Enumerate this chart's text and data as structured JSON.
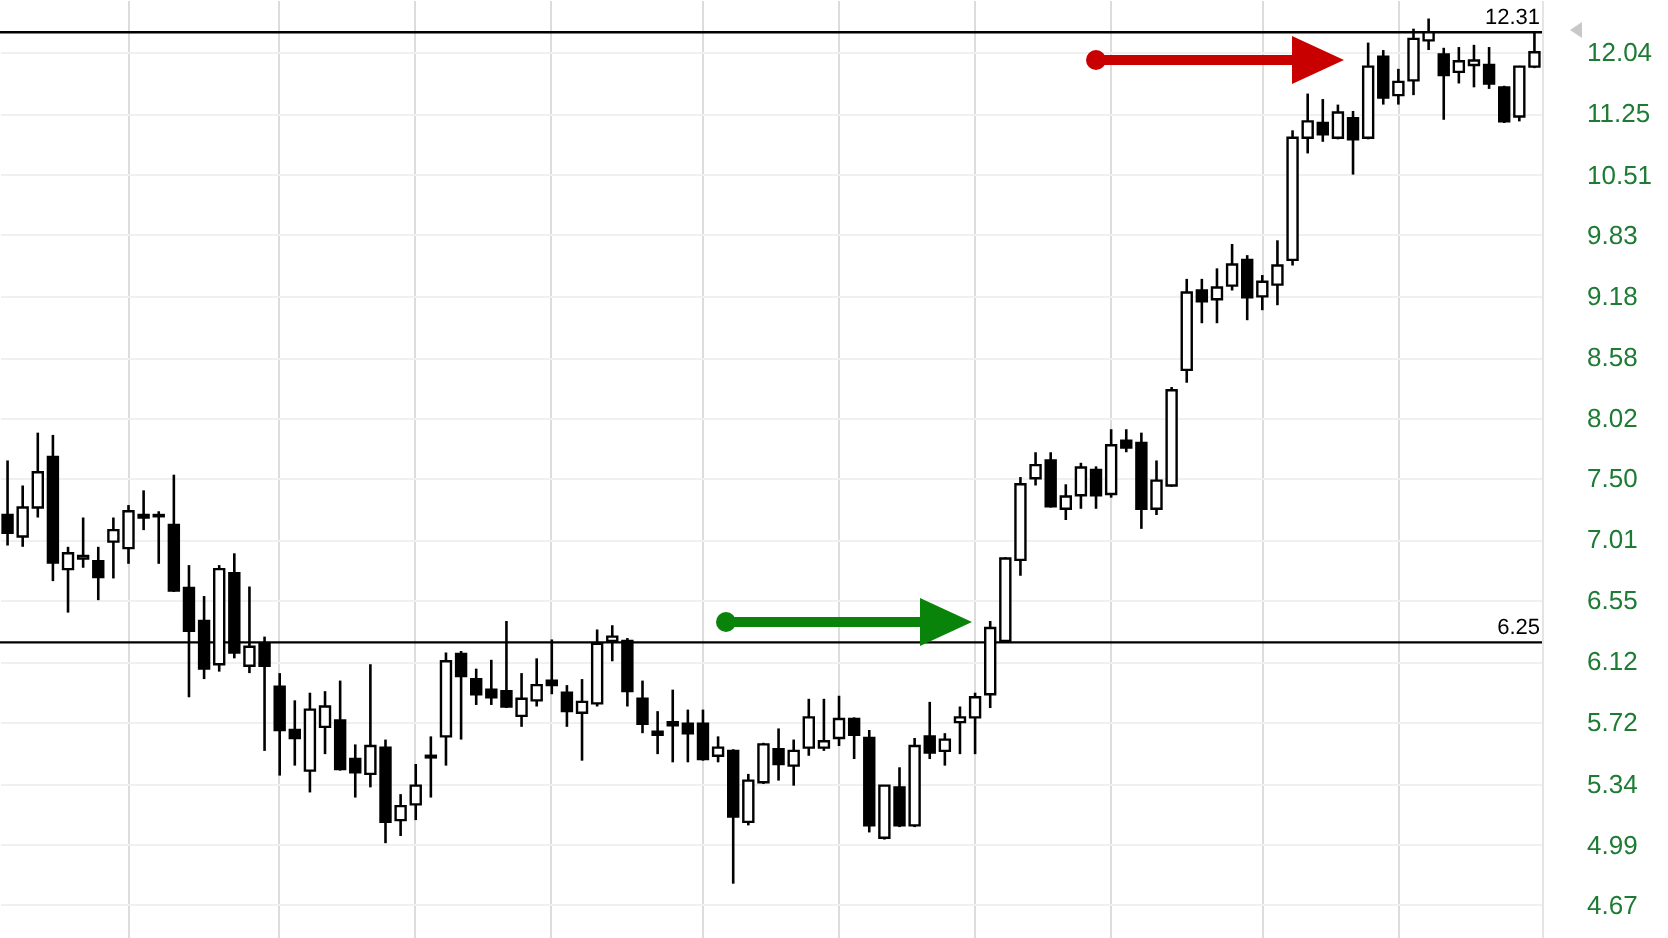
{
  "chart_data": {
    "type": "candlestick",
    "categories": [
      null,
      null,
      null,
      null,
      null,
      null,
      null,
      null,
      null,
      null,
      null,
      null,
      null,
      null,
      null,
      null,
      null,
      null,
      null,
      null,
      null,
      null,
      null,
      null,
      null,
      null,
      null,
      null,
      null,
      null,
      null,
      null,
      null,
      null,
      null,
      null,
      null,
      null,
      null,
      null,
      null,
      null,
      null,
      null,
      null,
      null,
      null,
      null,
      null,
      null,
      null,
      null,
      null,
      null,
      null,
      null,
      null,
      null,
      null,
      null,
      null,
      null,
      null,
      null,
      null,
      null,
      null,
      null,
      null,
      null,
      null,
      null,
      null,
      null,
      null,
      null,
      null,
      null,
      null,
      null,
      null,
      null,
      null,
      null,
      null,
      null,
      null,
      null,
      null,
      null,
      null,
      null,
      null,
      null,
      null,
      null,
      null,
      null,
      null,
      null,
      null,
      null
    ],
    "ohlc": [
      [
        7.2,
        7.65,
        6.96,
        7.06
      ],
      [
        7.03,
        7.44,
        6.95,
        7.26
      ],
      [
        7.26,
        7.89,
        7.18,
        7.55
      ],
      [
        7.68,
        7.87,
        6.69,
        6.83
      ],
      [
        6.78,
        6.95,
        6.46,
        6.9
      ],
      [
        6.86,
        7.18,
        6.79,
        6.88
      ],
      [
        6.84,
        6.95,
        6.55,
        6.72
      ],
      [
        6.99,
        7.18,
        6.71,
        7.08
      ],
      [
        6.94,
        7.28,
        6.82,
        7.23
      ],
      [
        7.2,
        7.4,
        7.08,
        7.18
      ],
      [
        7.2,
        7.23,
        6.82,
        7.19
      ],
      [
        7.12,
        7.53,
        6.61,
        6.62
      ],
      [
        6.64,
        6.81,
        5.88,
        6.33
      ],
      [
        6.4,
        6.58,
        6.0,
        6.07
      ],
      [
        6.1,
        6.81,
        6.05,
        6.78
      ],
      [
        6.75,
        6.9,
        6.14,
        6.18
      ],
      [
        6.09,
        6.65,
        6.04,
        6.22
      ],
      [
        6.24,
        6.29,
        5.54,
        6.09
      ],
      [
        5.95,
        6.04,
        5.39,
        5.67
      ],
      [
        5.67,
        5.86,
        5.45,
        5.62
      ],
      [
        5.42,
        5.91,
        5.29,
        5.8
      ],
      [
        5.69,
        5.92,
        5.52,
        5.82
      ],
      [
        5.73,
        5.99,
        5.42,
        5.43
      ],
      [
        5.49,
        5.58,
        5.26,
        5.41
      ],
      [
        5.4,
        6.1,
        5.32,
        5.57
      ],
      [
        5.56,
        5.61,
        5.0,
        5.12
      ],
      [
        5.13,
        5.28,
        5.04,
        5.21
      ],
      [
        5.22,
        5.46,
        5.13,
        5.33
      ],
      [
        5.5,
        5.63,
        5.26,
        5.51
      ],
      [
        5.63,
        6.18,
        5.45,
        6.12
      ],
      [
        6.17,
        6.19,
        5.61,
        6.02
      ],
      [
        6.0,
        6.07,
        5.83,
        5.9
      ],
      [
        5.93,
        6.13,
        5.83,
        5.88
      ],
      [
        5.92,
        6.4,
        5.81,
        5.82
      ],
      [
        5.76,
        6.04,
        5.69,
        5.87
      ],
      [
        5.86,
        6.14,
        5.82,
        5.96
      ],
      [
        5.99,
        6.27,
        5.9,
        5.96
      ],
      [
        5.91,
        5.96,
        5.69,
        5.79
      ],
      [
        5.78,
        6.0,
        5.48,
        5.85
      ],
      [
        5.84,
        6.34,
        5.82,
        6.24
      ],
      [
        6.26,
        6.37,
        6.12,
        6.29
      ],
      [
        6.26,
        6.28,
        5.82,
        5.92
      ],
      [
        5.87,
        5.99,
        5.65,
        5.71
      ],
      [
        5.66,
        5.79,
        5.52,
        5.64
      ],
      [
        5.72,
        5.93,
        5.47,
        5.7
      ],
      [
        5.71,
        5.8,
        5.47,
        5.65
      ],
      [
        5.71,
        5.8,
        5.48,
        5.49
      ],
      [
        5.51,
        5.63,
        5.47,
        5.56
      ],
      [
        5.54,
        5.55,
        4.78,
        5.15
      ],
      [
        5.12,
        5.4,
        5.1,
        5.36
      ],
      [
        5.35,
        5.59,
        5.34,
        5.58
      ],
      [
        5.55,
        5.68,
        5.36,
        5.46
      ],
      [
        5.45,
        5.61,
        5.33,
        5.54
      ],
      [
        5.56,
        5.87,
        5.51,
        5.75
      ],
      [
        5.56,
        5.87,
        5.54,
        5.6
      ],
      [
        5.62,
        5.89,
        5.57,
        5.74
      ],
      [
        5.74,
        5.75,
        5.49,
        5.64
      ],
      [
        5.62,
        5.67,
        5.06,
        5.1
      ],
      [
        5.03,
        5.33,
        5.02,
        5.33
      ],
      [
        5.32,
        5.44,
        5.09,
        5.1
      ],
      [
        5.1,
        5.62,
        5.09,
        5.57
      ],
      [
        5.63,
        5.85,
        5.49,
        5.53
      ],
      [
        5.54,
        5.65,
        5.45,
        5.61
      ],
      [
        5.72,
        5.82,
        5.52,
        5.75
      ],
      [
        5.75,
        5.91,
        5.52,
        5.88
      ],
      [
        5.9,
        6.4,
        5.81,
        6.35
      ],
      [
        6.26,
        6.87,
        6.26,
        6.86
      ],
      [
        6.85,
        7.51,
        6.73,
        7.45
      ],
      [
        7.5,
        7.72,
        7.44,
        7.61
      ],
      [
        7.65,
        7.72,
        7.26,
        7.27
      ],
      [
        7.25,
        7.45,
        7.16,
        7.35
      ],
      [
        7.36,
        7.63,
        7.25,
        7.59
      ],
      [
        7.57,
        7.6,
        7.25,
        7.36
      ],
      [
        7.37,
        7.92,
        7.34,
        7.78
      ],
      [
        7.82,
        7.92,
        7.72,
        7.76
      ],
      [
        7.8,
        7.89,
        7.09,
        7.25
      ],
      [
        7.25,
        7.65,
        7.2,
        7.48
      ],
      [
        7.44,
        8.3,
        7.43,
        8.27
      ],
      [
        8.46,
        9.36,
        8.34,
        9.22
      ],
      [
        9.24,
        9.36,
        8.91,
        9.13
      ],
      [
        9.15,
        9.47,
        8.91,
        9.27
      ],
      [
        9.29,
        9.73,
        9.24,
        9.51
      ],
      [
        9.56,
        9.61,
        8.94,
        9.17
      ],
      [
        9.18,
        9.4,
        9.04,
        9.33
      ],
      [
        9.3,
        9.77,
        9.09,
        9.5
      ],
      [
        9.56,
        11.04,
        9.5,
        10.95
      ],
      [
        10.95,
        11.5,
        10.76,
        11.15
      ],
      [
        11.13,
        11.43,
        10.9,
        10.99
      ],
      [
        10.95,
        11.36,
        10.93,
        11.26
      ],
      [
        11.19,
        11.28,
        10.51,
        10.93
      ],
      [
        10.95,
        12.17,
        10.93,
        11.85
      ],
      [
        11.98,
        12.07,
        11.36,
        11.45
      ],
      [
        11.48,
        11.82,
        11.36,
        11.65
      ],
      [
        11.67,
        12.36,
        11.48,
        12.22
      ],
      [
        12.2,
        12.5,
        12.07,
        12.31
      ],
      [
        12.01,
        12.1,
        11.17,
        11.74
      ],
      [
        11.78,
        12.11,
        11.63,
        11.92
      ],
      [
        11.87,
        12.14,
        11.58,
        11.93
      ],
      [
        11.87,
        12.11,
        11.56,
        11.63
      ],
      [
        11.58,
        11.6,
        11.13,
        11.15
      ],
      [
        11.21,
        11.86,
        11.15,
        11.85
      ],
      [
        11.85,
        12.31,
        11.83,
        12.04
      ]
    ],
    "log": true,
    "ylim": [
      4.5,
      12.76
    ],
    "yticks": [
      4.67,
      4.99,
      5.34,
      5.72,
      6.12,
      6.55,
      7.01,
      {
        "value": 7.5,
        "label": "7.50"
      },
      8.02,
      8.58,
      9.18,
      9.83,
      10.51,
      11.25,
      12.04
    ],
    "ref_lines": [
      {
        "axis": "y",
        "value": 12.31,
        "label": "12.31"
      },
      {
        "axis": "y",
        "value": 6.25,
        "label": "6.25"
      }
    ],
    "grid": true,
    "tick_labels": "y"
  }
}
